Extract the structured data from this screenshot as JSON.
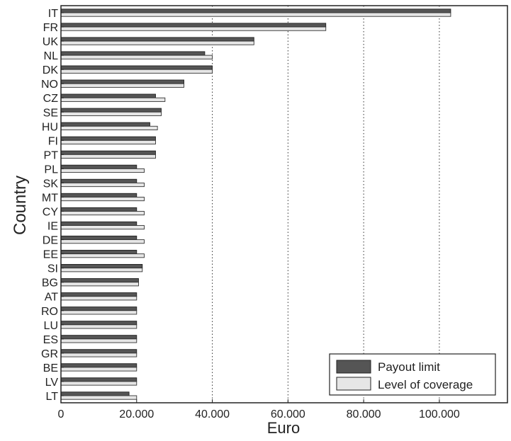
{
  "chart_data": {
    "type": "bar",
    "orientation": "horizontal",
    "xlabel": "Euro",
    "ylabel": "Country",
    "xlim": [
      0,
      118000
    ],
    "x_ticks": [
      0,
      20000,
      40000,
      60000,
      80000,
      100000
    ],
    "x_tick_labels": [
      "0",
      "20.000",
      "40.000",
      "60.000",
      "80.000",
      "100.000"
    ],
    "grid": "vertical dotted lines at 40.000, 60.000, 80.000, 100.000",
    "legend_position": "bottom-right",
    "categories": [
      "IT",
      "FR",
      "UK",
      "NL",
      "DK",
      "NO",
      "CZ",
      "SE",
      "HU",
      "FI",
      "PT",
      "PL",
      "SK",
      "MT",
      "CY",
      "IE",
      "DE",
      "EE",
      "SI",
      "BG",
      "AT",
      "RO",
      "LU",
      "ES",
      "GR",
      "BE",
      "LV",
      "LT"
    ],
    "series": [
      {
        "name": "Payout limit",
        "color": "#555555",
        "values": [
          103000,
          70000,
          51000,
          38000,
          40000,
          32500,
          25000,
          26500,
          23500,
          25000,
          25000,
          20000,
          20000,
          20000,
          20000,
          20000,
          20000,
          20000,
          21500,
          20500,
          20000,
          20000,
          20000,
          20000,
          20000,
          20000,
          20000,
          18000
        ]
      },
      {
        "name": "Level of coverage",
        "color": "#e6e6e6",
        "values": [
          103000,
          70000,
          51000,
          40000,
          40000,
          32500,
          27500,
          26500,
          25500,
          25000,
          25000,
          22000,
          22000,
          22000,
          22000,
          22000,
          22000,
          22000,
          21500,
          20500,
          20000,
          20000,
          20000,
          20000,
          20000,
          20000,
          20000,
          20000
        ]
      }
    ]
  }
}
